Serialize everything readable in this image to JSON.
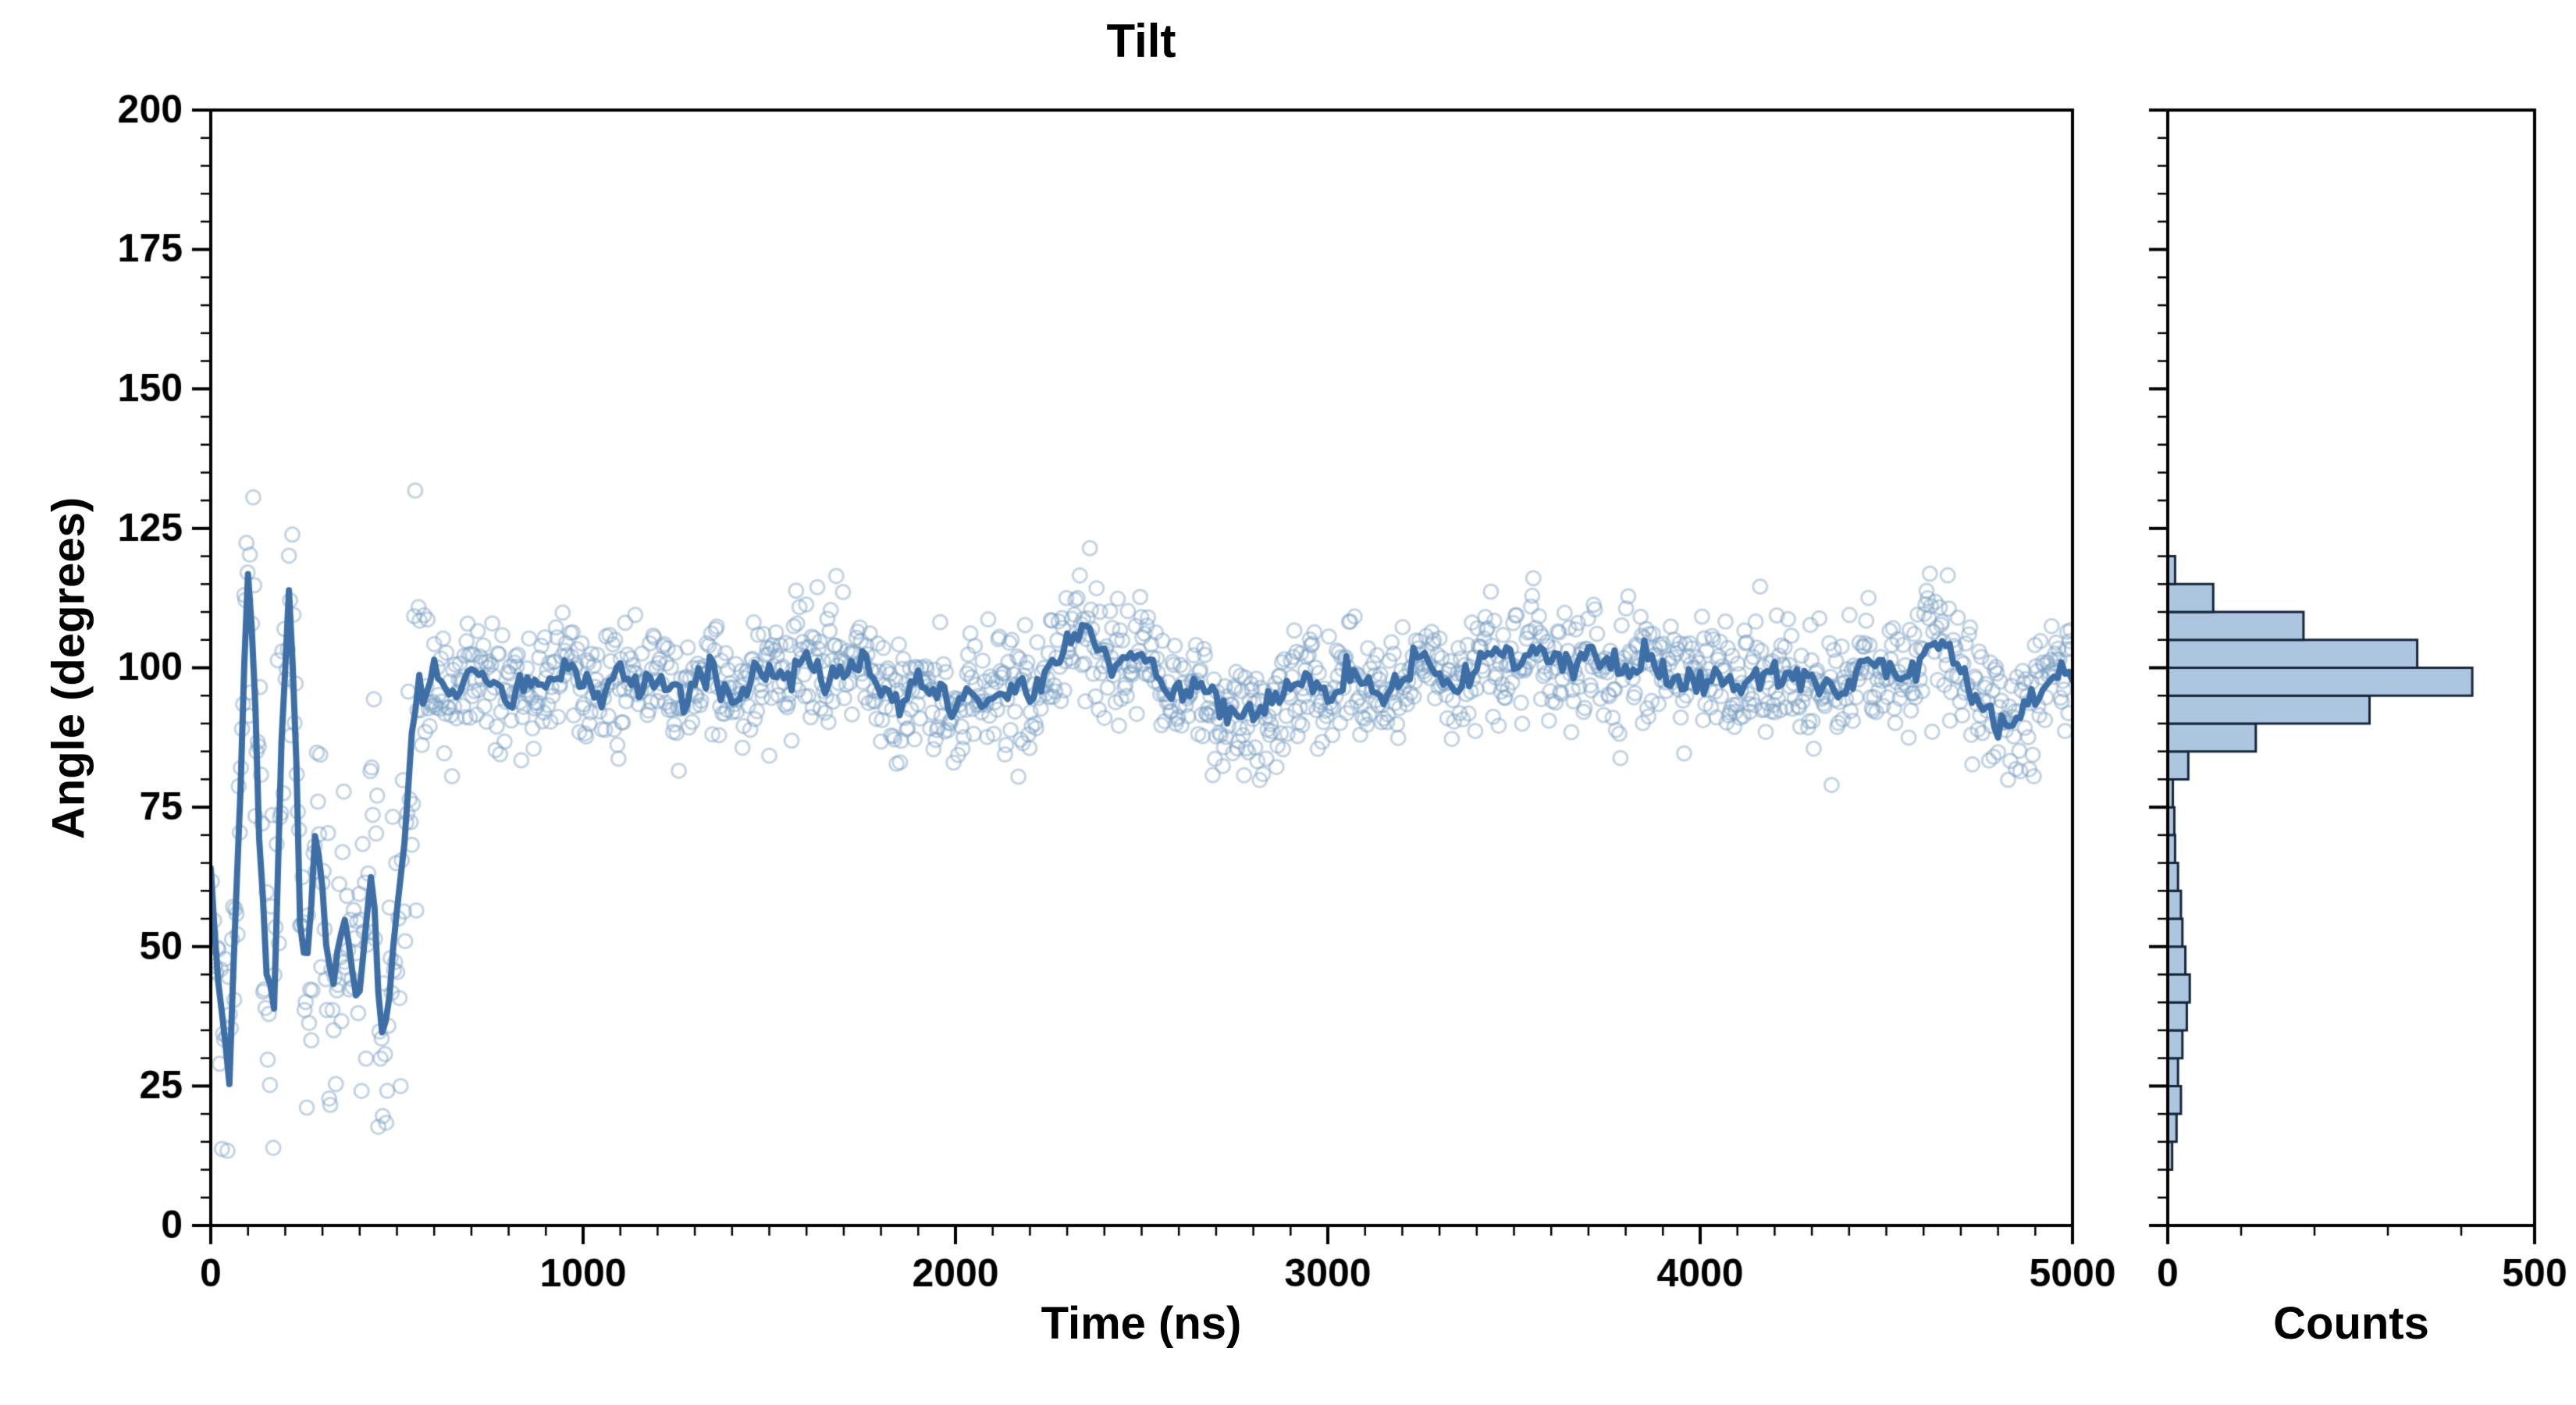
{
  "figure": {
    "title": "Tilt",
    "xlabel": "Time (ns)",
    "ylabel": "Angle (degrees)",
    "hist_xlabel": "Counts",
    "background": "#ffffff",
    "frame_color": "#000000"
  },
  "chart_data": [
    {
      "type": "scatter",
      "title": "Tilt",
      "xlabel": "Time (ns)",
      "ylabel": "Angle (degrees)",
      "xlim": [
        0,
        5000
      ],
      "ylim": [
        0,
        200
      ],
      "xticks": [
        0,
        1000,
        2000,
        3000,
        4000,
        5000
      ],
      "yticks": [
        0,
        25,
        50,
        75,
        100,
        125,
        150,
        175,
        200
      ],
      "x_minor_step": 100,
      "y_minor_step": 5,
      "grid": false,
      "scatter_style": {
        "color": "#7aa0c4",
        "alpha": 0.45,
        "radius": 9,
        "stroke_width": 3
      },
      "line_style": {
        "color": "#3d6fa6",
        "width": 8
      },
      "scatter_gen": {
        "seed": 20240613,
        "dt": 3,
        "sigma_early": 13,
        "sigma_late": 5.5,
        "early_until": 560,
        "line_jitter": 1.4,
        "line_dt": 10
      },
      "mean_line": [
        [
          0,
          62
        ],
        [
          25,
          40
        ],
        [
          50,
          25
        ],
        [
          75,
          70
        ],
        [
          100,
          116
        ],
        [
          115,
          104
        ],
        [
          130,
          70
        ],
        [
          150,
          44
        ],
        [
          170,
          40
        ],
        [
          190,
          86
        ],
        [
          210,
          113
        ],
        [
          225,
          94
        ],
        [
          240,
          58
        ],
        [
          255,
          44
        ],
        [
          270,
          56
        ],
        [
          285,
          72
        ],
        [
          300,
          61
        ],
        [
          315,
          45
        ],
        [
          330,
          42
        ],
        [
          345,
          51
        ],
        [
          360,
          56
        ],
        [
          375,
          48
        ],
        [
          390,
          42
        ],
        [
          405,
          44
        ],
        [
          420,
          58
        ],
        [
          435,
          62
        ],
        [
          450,
          42
        ],
        [
          465,
          34
        ],
        [
          480,
          41
        ],
        [
          495,
          50
        ],
        [
          510,
          62
        ],
        [
          525,
          72
        ],
        [
          540,
          88
        ],
        [
          560,
          97
        ],
        [
          580,
          95
        ],
        [
          600,
          99
        ],
        [
          650,
          95
        ],
        [
          700,
          101
        ],
        [
          750,
          97
        ],
        [
          800,
          94
        ],
        [
          850,
          98
        ],
        [
          900,
          96
        ],
        [
          950,
          101
        ],
        [
          1000,
          97
        ],
        [
          1050,
          95
        ],
        [
          1100,
          99
        ],
        [
          1150,
          96
        ],
        [
          1200,
          98
        ],
        [
          1250,
          95
        ],
        [
          1300,
          97
        ],
        [
          1350,
          99
        ],
        [
          1400,
          94
        ],
        [
          1450,
          97
        ],
        [
          1500,
          100
        ],
        [
          1550,
          98
        ],
        [
          1600,
          101
        ],
        [
          1650,
          97
        ],
        [
          1700,
          99
        ],
        [
          1750,
          102
        ],
        [
          1800,
          96
        ],
        [
          1850,
          94
        ],
        [
          1900,
          97
        ],
        [
          1950,
          95
        ],
        [
          2000,
          93
        ],
        [
          2050,
          96
        ],
        [
          2100,
          94
        ],
        [
          2150,
          97
        ],
        [
          2200,
          95
        ],
        [
          2250,
          99
        ],
        [
          2300,
          104
        ],
        [
          2350,
          107
        ],
        [
          2400,
          102
        ],
        [
          2450,
          100
        ],
        [
          2500,
          103
        ],
        [
          2550,
          98
        ],
        [
          2600,
          95
        ],
        [
          2650,
          97
        ],
        [
          2700,
          94
        ],
        [
          2750,
          92
        ],
        [
          2800,
          91
        ],
        [
          2850,
          94
        ],
        [
          2900,
          96
        ],
        [
          2950,
          98
        ],
        [
          3000,
          95
        ],
        [
          3050,
          99
        ],
        [
          3100,
          97
        ],
        [
          3150,
          94
        ],
        [
          3200,
          98
        ],
        [
          3250,
          102
        ],
        [
          3300,
          99
        ],
        [
          3350,
          96
        ],
        [
          3400,
          100
        ],
        [
          3450,
          103
        ],
        [
          3500,
          101
        ],
        [
          3550,
          104
        ],
        [
          3600,
          102
        ],
        [
          3650,
          99
        ],
        [
          3700,
          103
        ],
        [
          3750,
          101
        ],
        [
          3800,
          98
        ],
        [
          3850,
          102
        ],
        [
          3900,
          100
        ],
        [
          3950,
          97
        ],
        [
          4000,
          99
        ],
        [
          4050,
          98
        ],
        [
          4100,
          96
        ],
        [
          4150,
          99
        ],
        [
          4200,
          97
        ],
        [
          4250,
          100
        ],
        [
          4300,
          98
        ],
        [
          4350,
          95
        ],
        [
          4400,
          99
        ],
        [
          4450,
          102
        ],
        [
          4500,
          100
        ],
        [
          4550,
          98
        ],
        [
          4600,
          103
        ],
        [
          4650,
          105
        ],
        [
          4700,
          99
        ],
        [
          4750,
          94
        ],
        [
          4800,
          91
        ],
        [
          4850,
          90
        ],
        [
          4900,
          95
        ],
        [
          4950,
          98
        ],
        [
          5000,
          99
        ]
      ]
    },
    {
      "type": "bar",
      "orientation": "horizontal",
      "xlabel": "Counts",
      "xlim": [
        0,
        500
      ],
      "ylim": [
        0,
        200
      ],
      "xticks": [
        0,
        500
      ],
      "x_minor_step": 100,
      "y_minor_step": 5,
      "show_ytick_labels": false,
      "bin_width": 5,
      "bar_style": {
        "fill": "#adc6e0",
        "edge": "#17273a",
        "edge_width": 3
      },
      "bins": [
        [
          10,
          6
        ],
        [
          15,
          12
        ],
        [
          20,
          18
        ],
        [
          25,
          14
        ],
        [
          30,
          20
        ],
        [
          35,
          26
        ],
        [
          40,
          30
        ],
        [
          45,
          24
        ],
        [
          50,
          20
        ],
        [
          55,
          18
        ],
        [
          60,
          14
        ],
        [
          65,
          10
        ],
        [
          70,
          9
        ],
        [
          75,
          7
        ],
        [
          80,
          28
        ],
        [
          85,
          120
        ],
        [
          90,
          275
        ],
        [
          95,
          415
        ],
        [
          100,
          340
        ],
        [
          105,
          185
        ],
        [
          110,
          62
        ],
        [
          115,
          10
        ]
      ]
    }
  ]
}
